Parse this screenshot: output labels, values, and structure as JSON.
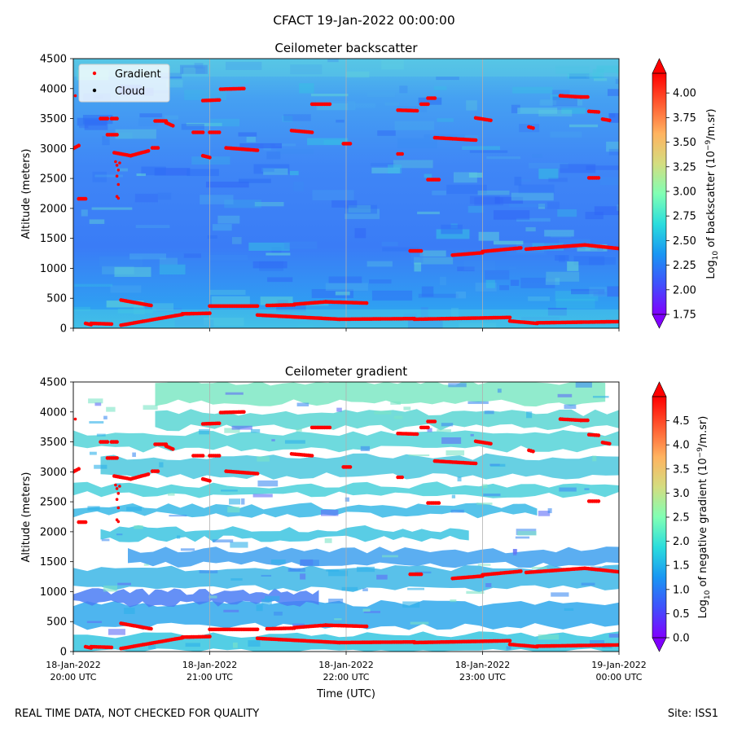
{
  "figure": {
    "suptitle": "CFACT 19-Jan-2022 00:00:00",
    "footer_left": "REAL TIME DATA, NOT CHECKED FOR QUALITY",
    "footer_right": "Site: ISS1"
  },
  "chart_data": [
    {
      "type": "heatmap",
      "title": "Ceilometer backscatter",
      "xlabel": "",
      "ylabel": "Altitude (meters)",
      "ylim": [
        0,
        4500
      ],
      "yticks": [
        0,
        500,
        1000,
        1500,
        2000,
        2500,
        3000,
        3500,
        4000,
        4500
      ],
      "xlim_hours": [
        20,
        24
      ],
      "xtick_hours": [
        20,
        21,
        22,
        23,
        24
      ],
      "xtick_labels_visible": false,
      "grid_vertical": true,
      "colorbar": {
        "label": "Log10 of backscatter (10^-9/m.sr)",
        "label_parts": [
          "Log",
          "10",
          " of backscatter (10",
          "−9",
          "/m.sr)"
        ],
        "range": [
          1.75,
          4.2
        ],
        "ticks": [
          "1.75",
          "2.00",
          "2.25",
          "2.50",
          "2.75",
          "3.00",
          "3.25",
          "3.50",
          "3.75",
          "4.00"
        ],
        "tick_values": [
          1.75,
          2.0,
          2.25,
          2.5,
          2.75,
          3.0,
          3.25,
          3.5,
          3.75,
          4.0
        ],
        "colormap": "rainbow",
        "extend": "both"
      },
      "legend": {
        "placement": "top-left",
        "entries": [
          {
            "label": "Gradient",
            "color": "#ff0000"
          },
          {
            "label": "Cloud",
            "color": "#000000"
          }
        ]
      }
    },
    {
      "type": "heatmap",
      "title": "Ceilometer gradient",
      "xlabel": "Time (UTC)",
      "ylabel": "Altitude (meters)",
      "ylim": [
        0,
        4500
      ],
      "yticks": [
        0,
        500,
        1000,
        1500,
        2000,
        2500,
        3000,
        3500,
        4000,
        4500
      ],
      "xlim_hours": [
        20,
        24
      ],
      "xtick_hours": [
        20,
        21,
        22,
        23,
        24
      ],
      "xtick_labels": [
        [
          "18-Jan-2022",
          "20:00 UTC"
        ],
        [
          "18-Jan-2022",
          "21:00 UTC"
        ],
        [
          "18-Jan-2022",
          "22:00 UTC"
        ],
        [
          "18-Jan-2022",
          "23:00 UTC"
        ],
        [
          "19-Jan-2022",
          "00:00 UTC"
        ]
      ],
      "grid_vertical": true,
      "colorbar": {
        "label": "Log10 of negative gradient (10^-9/m.sr)",
        "label_parts": [
          "Log",
          "10",
          " of negative gradient (10",
          "−9",
          "/m.sr)"
        ],
        "range": [
          0.0,
          5.0
        ],
        "ticks": [
          "0.0",
          "0.5",
          "1.0",
          "1.5",
          "2.0",
          "2.5",
          "3.0",
          "3.5",
          "4.0",
          "4.5"
        ],
        "tick_values": [
          0.0,
          0.5,
          1.0,
          1.5,
          2.0,
          2.5,
          3.0,
          3.5,
          4.0,
          4.5
        ],
        "colormap": "rainbow",
        "extend": "both"
      }
    }
  ],
  "gradient_points": [
    {
      "t": [
        20.0,
        20.04
      ],
      "alt": [
        3000,
        3050
      ]
    },
    {
      "t": [
        20.04,
        20.09
      ],
      "alt": [
        2160,
        2160
      ]
    },
    {
      "t": [
        20.09,
        20.13
      ],
      "alt": [
        80,
        60
      ]
    },
    {
      "t": [
        20.13,
        20.28
      ],
      "alt": [
        80,
        70
      ]
    },
    {
      "t": [
        20.2,
        20.25
      ],
      "alt": [
        3500,
        3500
      ]
    },
    {
      "t": [
        20.28,
        20.32
      ],
      "alt": [
        3500,
        3500
      ]
    },
    {
      "t": [
        20.25,
        20.32
      ],
      "alt": [
        3230,
        3230
      ]
    },
    {
      "t": [
        20.3,
        20.42
      ],
      "alt": [
        2930,
        2880
      ]
    },
    {
      "t": [
        20.42,
        20.55
      ],
      "alt": [
        2880,
        2960
      ]
    },
    {
      "t": [
        20.35,
        20.57
      ],
      "alt": [
        470,
        380
      ]
    },
    {
      "t": [
        20.35,
        20.8
      ],
      "alt": [
        50,
        230
      ]
    },
    {
      "t": [
        20.6,
        20.68
      ],
      "alt": [
        3460,
        3460
      ]
    },
    {
      "t": [
        20.68,
        20.73
      ],
      "alt": [
        3430,
        3380
      ]
    },
    {
      "t": [
        20.58,
        20.62
      ],
      "alt": [
        3010,
        3010
      ]
    },
    {
      "t": [
        20.8,
        21.0
      ],
      "alt": [
        240,
        250
      ]
    },
    {
      "t": [
        20.88,
        20.95
      ],
      "alt": [
        3270,
        3270
      ]
    },
    {
      "t": [
        20.95,
        21.0
      ],
      "alt": [
        2880,
        2850
      ]
    },
    {
      "t": [
        20.95,
        21.07
      ],
      "alt": [
        3800,
        3810
      ]
    },
    {
      "t": [
        21.0,
        21.07
      ],
      "alt": [
        3270,
        3270
      ]
    },
    {
      "t": [
        21.0,
        21.35
      ],
      "alt": [
        370,
        370
      ]
    },
    {
      "t": [
        21.08,
        21.25
      ],
      "alt": [
        3990,
        4000
      ]
    },
    {
      "t": [
        21.12,
        21.35
      ],
      "alt": [
        3010,
        2970
      ]
    },
    {
      "t": [
        21.35,
        21.95
      ],
      "alt": [
        220,
        150
      ]
    },
    {
      "t": [
        21.95,
        22.5
      ],
      "alt": [
        150,
        160
      ]
    },
    {
      "t": [
        21.42,
        21.62
      ],
      "alt": [
        380,
        390
      ]
    },
    {
      "t": [
        21.62,
        21.85
      ],
      "alt": [
        400,
        440
      ]
    },
    {
      "t": [
        21.85,
        22.15
      ],
      "alt": [
        440,
        420
      ]
    },
    {
      "t": [
        21.6,
        21.75
      ],
      "alt": [
        3300,
        3270
      ]
    },
    {
      "t": [
        21.75,
        21.88
      ],
      "alt": [
        3740,
        3740
      ]
    },
    {
      "t": [
        21.98,
        22.03
      ],
      "alt": [
        3080,
        3080
      ]
    },
    {
      "t": [
        22.38,
        22.52
      ],
      "alt": [
        3640,
        3630
      ]
    },
    {
      "t": [
        22.38,
        22.41
      ],
      "alt": [
        2910,
        2910
      ]
    },
    {
      "t": [
        22.47,
        22.55
      ],
      "alt": [
        1290,
        1290
      ]
    },
    {
      "t": [
        22.55,
        22.6
      ],
      "alt": [
        3740,
        3740
      ]
    },
    {
      "t": [
        22.6,
        22.65
      ],
      "alt": [
        3840,
        3840
      ]
    },
    {
      "t": [
        22.6,
        22.68
      ],
      "alt": [
        2480,
        2480
      ]
    },
    {
      "t": [
        22.5,
        23.2
      ],
      "alt": [
        150,
        180
      ]
    },
    {
      "t": [
        23.2,
        23.4
      ],
      "alt": [
        120,
        80
      ]
    },
    {
      "t": [
        23.4,
        24.0
      ],
      "alt": [
        90,
        110
      ]
    },
    {
      "t": [
        22.65,
        22.95
      ],
      "alt": [
        3180,
        3140
      ]
    },
    {
      "t": [
        22.78,
        23.0
      ],
      "alt": [
        1220,
        1260
      ]
    },
    {
      "t": [
        23.0,
        23.28
      ],
      "alt": [
        1280,
        1340
      ]
    },
    {
      "t": [
        23.32,
        23.75
      ],
      "alt": [
        1320,
        1390
      ]
    },
    {
      "t": [
        23.75,
        24.0
      ],
      "alt": [
        1390,
        1330
      ]
    },
    {
      "t": [
        22.95,
        23.06
      ],
      "alt": [
        3510,
        3470
      ]
    },
    {
      "t": [
        23.34,
        23.37
      ],
      "alt": [
        3360,
        3340
      ]
    },
    {
      "t": [
        23.57,
        23.72
      ],
      "alt": [
        3880,
        3860
      ]
    },
    {
      "t": [
        23.72,
        23.77
      ],
      "alt": [
        3860,
        3860
      ]
    },
    {
      "t": [
        23.78,
        23.85
      ],
      "alt": [
        3620,
        3610
      ]
    },
    {
      "t": [
        23.78,
        23.85
      ],
      "alt": [
        2510,
        2510
      ]
    },
    {
      "t": [
        23.88,
        23.93
      ],
      "alt": [
        3490,
        3470
      ]
    }
  ],
  "gradient_scatter": [
    {
      "t": 20.31,
      "alt": 2780
    },
    {
      "t": 20.32,
      "alt": 2720
    },
    {
      "t": 20.33,
      "alt": 2640
    },
    {
      "t": 20.34,
      "alt": 2760
    },
    {
      "t": 20.33,
      "alt": 2400
    },
    {
      "t": 20.32,
      "alt": 2200
    },
    {
      "t": 20.33,
      "alt": 2170
    },
    {
      "t": 20.32,
      "alt": 2540
    },
    {
      "t": 20.015,
      "alt": 3880
    }
  ]
}
